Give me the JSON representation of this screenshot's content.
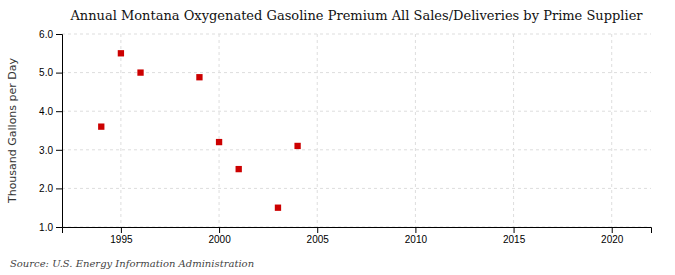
{
  "chart_data": {
    "type": "scatter",
    "title": "Annual Montana Oxygenated Gasoline Premium All Sales/Deliveries by Prime Supplier",
    "ylabel": "Thousand Gallons per Day",
    "source": "Source: U.S. Energy Information Administration",
    "x": [
      1994,
      1995,
      1996,
      1999,
      2000,
      2001,
      2003,
      2004
    ],
    "values": [
      3.6,
      5.5,
      5.0,
      4.88,
      3.2,
      2.5,
      1.5,
      3.1
    ],
    "color": "#cc0000",
    "marker": "square",
    "xlim": [
      1992,
      2022
    ],
    "ylim": [
      1.0,
      6.0
    ],
    "xticks": [
      1995,
      2000,
      2005,
      2010,
      2015,
      2020
    ],
    "yticks": [
      {
        "value": 1.0,
        "label": "1.0"
      },
      {
        "value": 2.0,
        "label": "2.0"
      },
      {
        "value": 3.0,
        "label": "3.0"
      },
      {
        "value": 4.0,
        "label": "4.0"
      },
      {
        "value": 5.0,
        "label": "5.0"
      },
      {
        "value": 6.0,
        "label": "6.0"
      }
    ],
    "grid": true
  }
}
